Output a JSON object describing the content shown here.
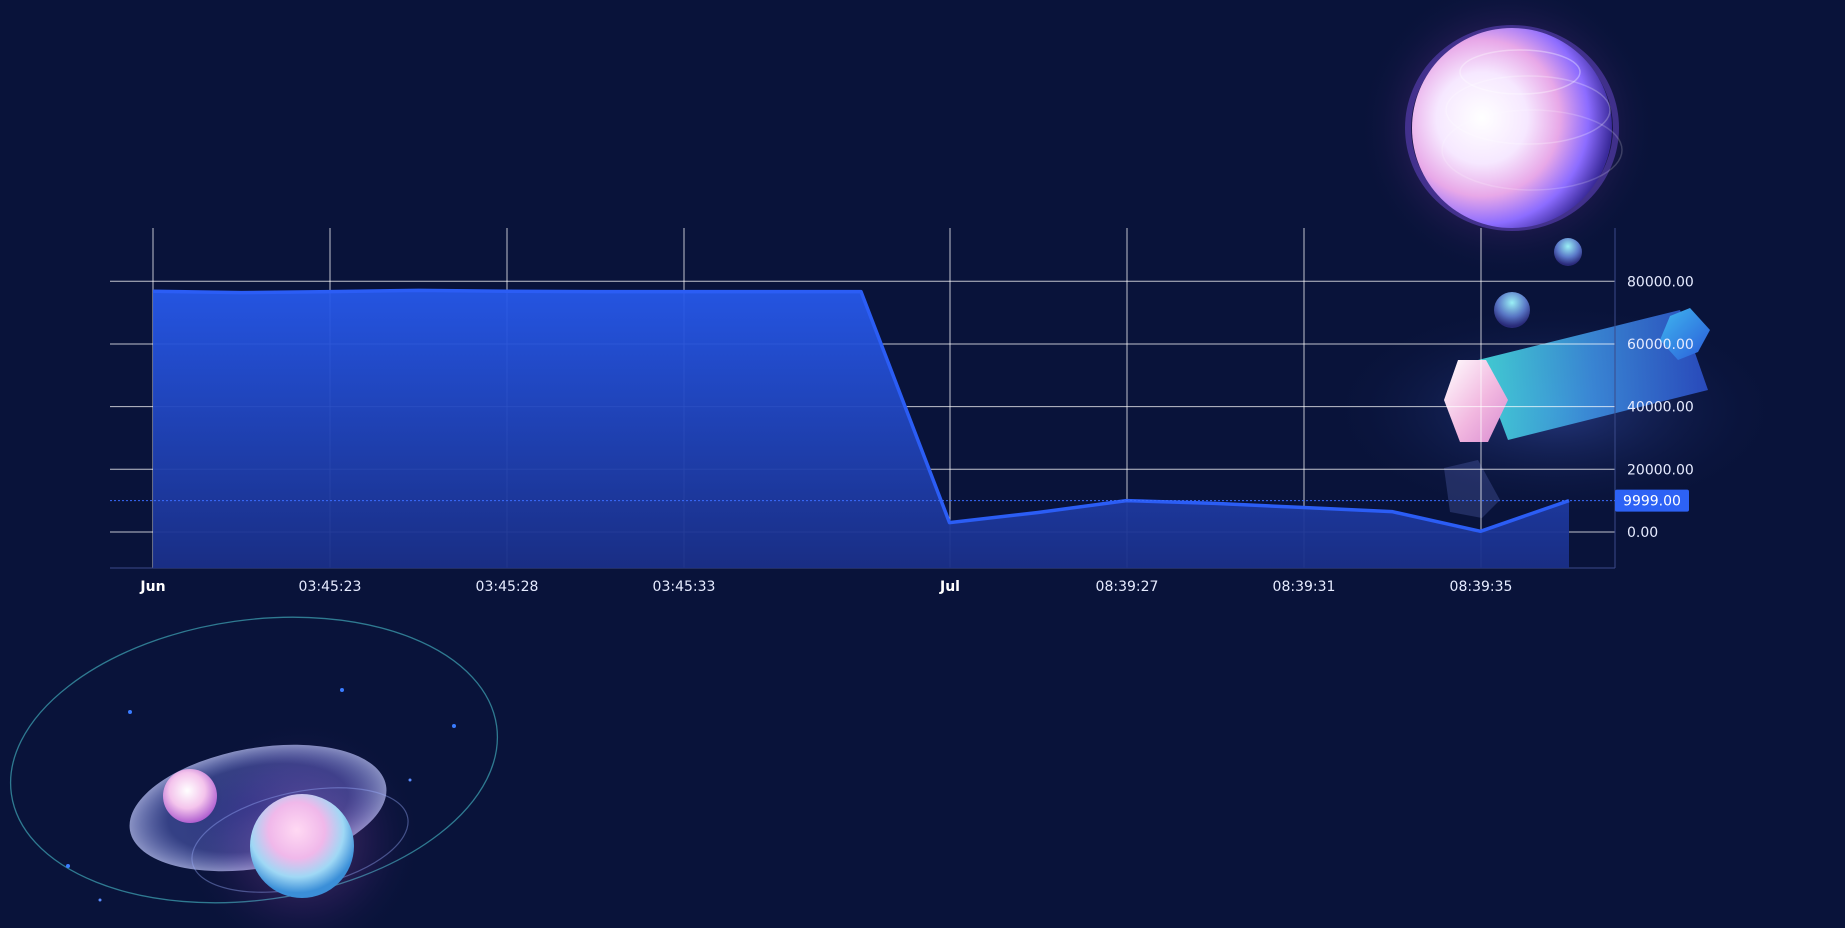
{
  "chart_data": {
    "type": "area",
    "title": "",
    "xlabel": "",
    "ylabel": "",
    "x_tick_labels": [
      "Jun",
      "03:45:23",
      "03:45:28",
      "03:45:33",
      "Jul",
      "08:39:27",
      "08:39:31",
      "08:39:35"
    ],
    "x_tick_major": [
      true,
      false,
      false,
      false,
      true,
      false,
      false,
      false
    ],
    "y_ticks": [
      0,
      20000,
      40000,
      60000,
      80000
    ],
    "y_tick_labels": [
      "0.00",
      "20000.00",
      "40000.00",
      "60000.00",
      "80000.00"
    ],
    "ylim": [
      -11500,
      97000
    ],
    "crosshair": {
      "value": 9999,
      "label": "9999.00"
    },
    "series": [
      {
        "values": [
          76800,
          76400,
          76700,
          77100,
          76800,
          76700,
          76700,
          76700,
          76700,
          3000,
          6200,
          10000,
          9100,
          7800,
          6500,
          200,
          10000
        ]
      }
    ],
    "colors": {
      "background": "#09133a",
      "line": "#2b5df5",
      "area_top": "#2658ea",
      "area_bottom": "#1a2f88",
      "grid": "#ffffff",
      "crosshair": "#3b6cff",
      "label_bg": "#2d62f5"
    },
    "grid": true,
    "y_axis_position": "right"
  }
}
